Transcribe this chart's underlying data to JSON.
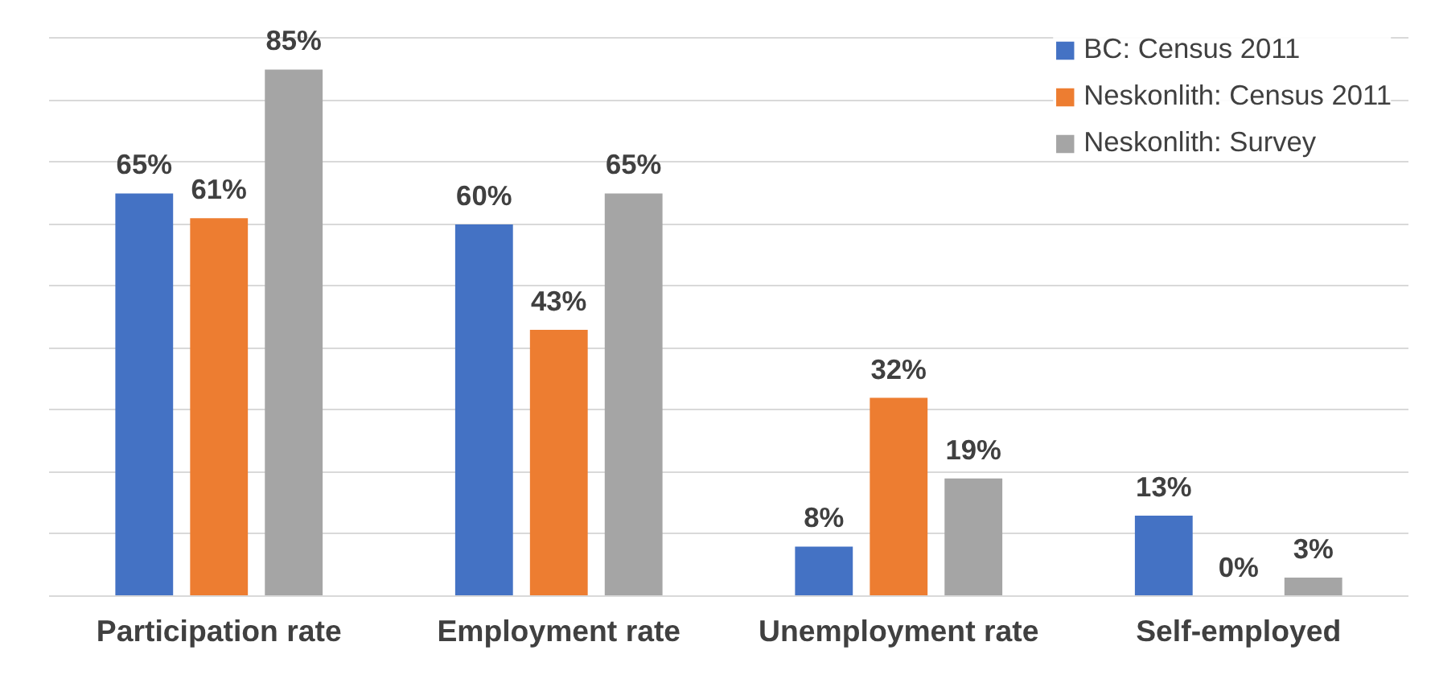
{
  "chart_data": {
    "type": "bar",
    "categories": [
      "Participation rate",
      "Employment rate",
      "Unemployment rate",
      "Self-employed"
    ],
    "series": [
      {
        "name": "BC: Census 2011",
        "color": "#4472c4",
        "values": [
          65,
          60,
          8,
          13
        ],
        "value_labels": [
          "65%",
          "60%",
          "8%",
          "13%"
        ]
      },
      {
        "name": "Neskonlith: Census 2011",
        "color": "#ed7d31",
        "values": [
          61,
          43,
          32,
          0
        ],
        "value_labels": [
          "61%",
          "43%",
          "32%",
          "0%"
        ]
      },
      {
        "name": "Neskonlith: Survey",
        "color": "#a5a5a5",
        "values": [
          85,
          65,
          19,
          3
        ],
        "value_labels": [
          "85%",
          "65%",
          "19%",
          "3%"
        ]
      }
    ],
    "grid": "y",
    "legend": "top right",
    "tick_labels": "x"
  }
}
